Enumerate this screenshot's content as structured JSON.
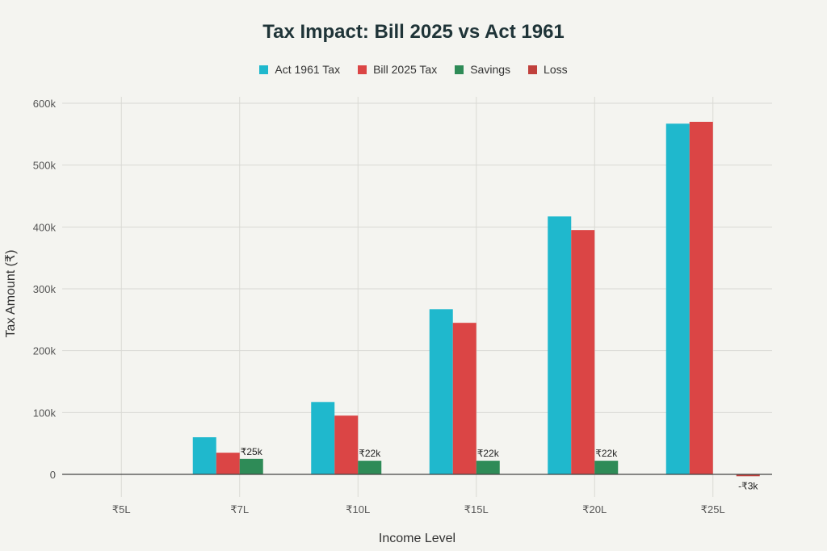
{
  "chart_data": {
    "type": "bar",
    "title": "Tax Impact: Bill 2025 vs Act 1961",
    "xlabel": "Income Level",
    "ylabel": "Tax Amount (₹)",
    "categories": [
      "₹5L",
      "₹7L",
      "₹10L",
      "₹15L",
      "₹20L",
      "₹25L"
    ],
    "ylim": [
      -12000,
      610000
    ],
    "yticks": [
      0,
      100000,
      200000,
      300000,
      400000,
      500000,
      600000
    ],
    "ytick_labels": [
      "0",
      "100k",
      "200k",
      "300k",
      "400k",
      "500k",
      "600k"
    ],
    "grid": true,
    "legend_position": "top-center",
    "series": [
      {
        "name": "Act 1961 Tax",
        "color": "#1fb8cd",
        "values": [
          0,
          60000,
          117000,
          267000,
          417000,
          567000
        ]
      },
      {
        "name": "Bill 2025 Tax",
        "color": "#db4545",
        "values": [
          0,
          35000,
          95000,
          245000,
          395000,
          570000
        ]
      },
      {
        "name": "Savings",
        "color": "#2e8b57",
        "values": [
          0,
          25000,
          22000,
          22000,
          22000,
          null
        ],
        "labels": [
          "",
          "₹25k",
          "₹22k",
          "₹22k",
          "₹22k",
          ""
        ]
      },
      {
        "name": "Loss",
        "color": "#c0403c",
        "values": [
          null,
          null,
          null,
          null,
          null,
          -3000
        ],
        "labels": [
          "",
          "",
          "",
          "",
          "",
          "-₹3k"
        ]
      }
    ]
  }
}
